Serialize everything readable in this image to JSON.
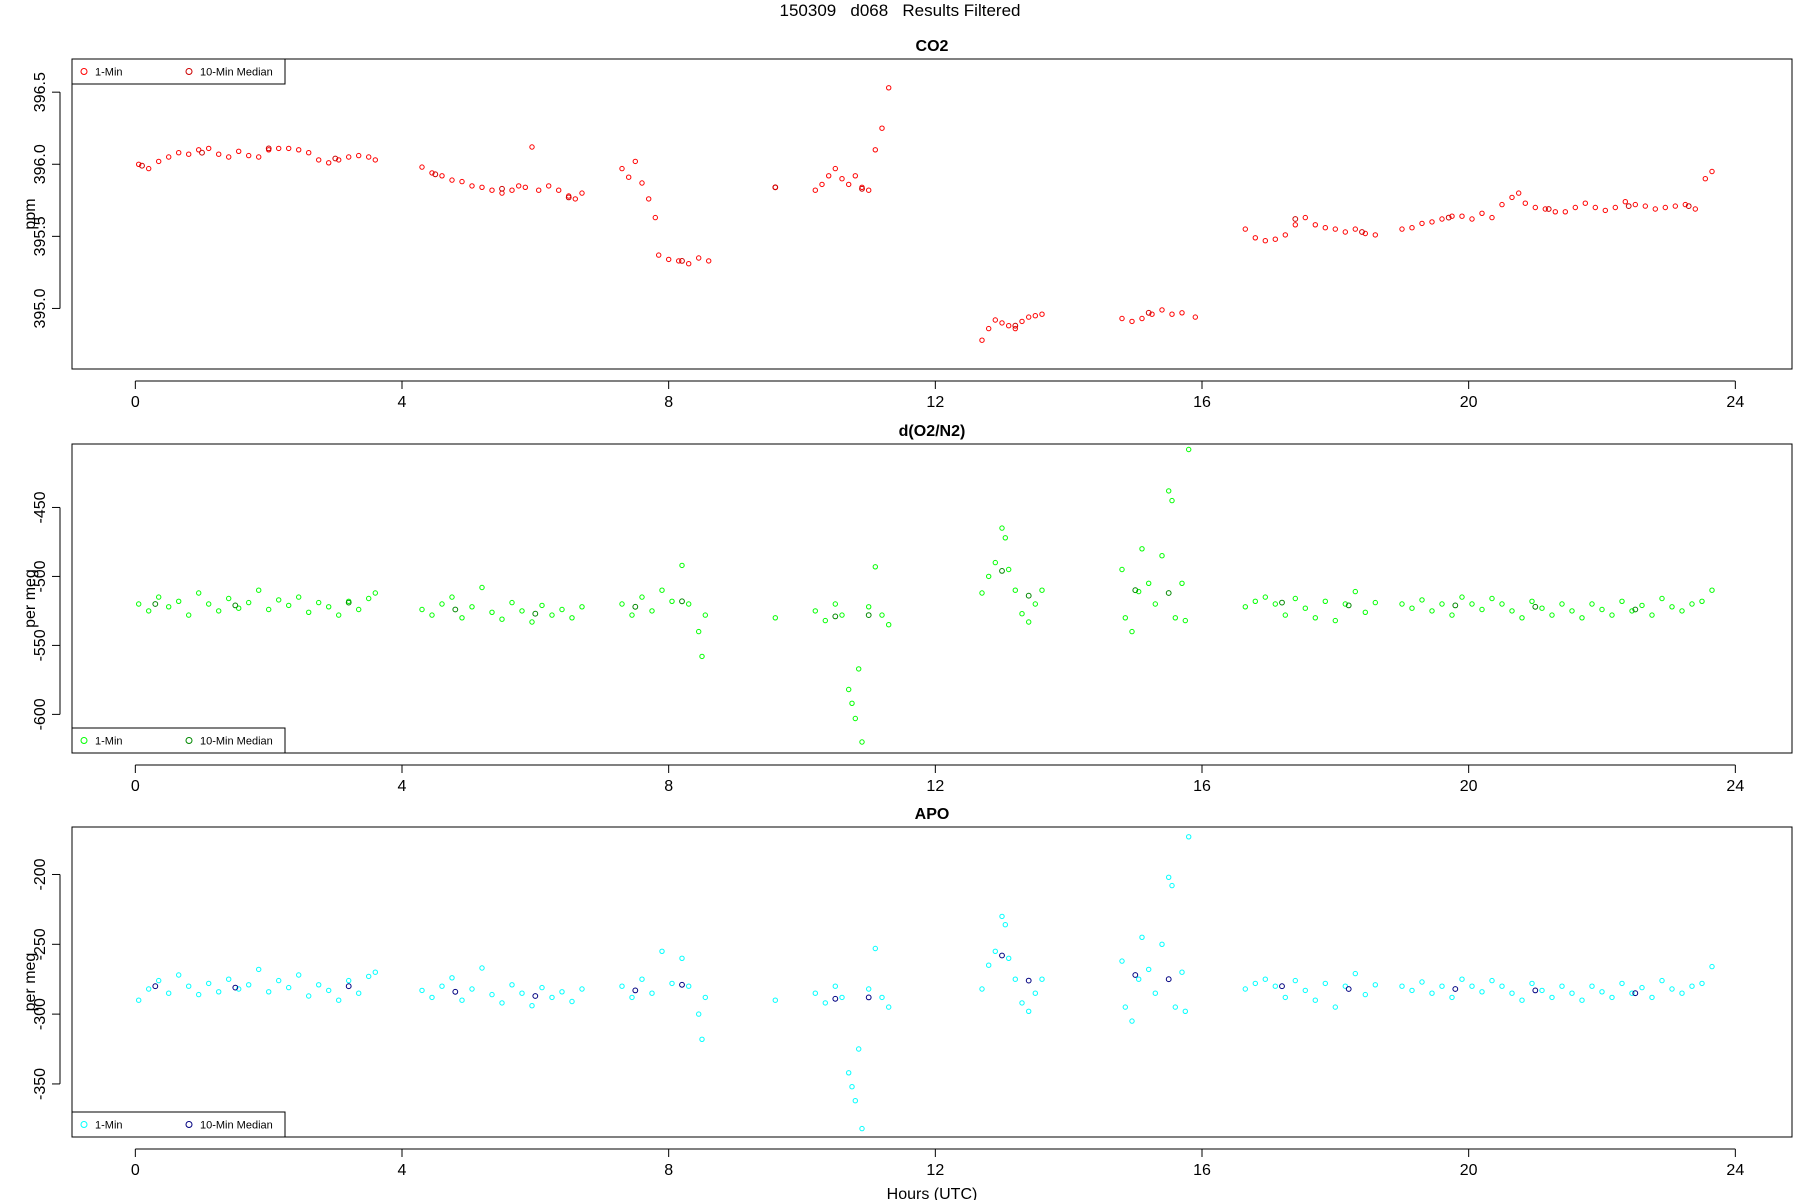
{
  "page_title": "150309   d068   Results Filtered",
  "chart_data": [
    {
      "type": "scatter",
      "title": "CO2",
      "xlabel": "",
      "ylabel": "ppm",
      "xlim": [
        -0.95,
        24.85
      ],
      "ylim": [
        394.58,
        396.73
      ],
      "xticks": [
        "0",
        "4",
        "8",
        "12",
        "16",
        "20",
        "24"
      ],
      "yticks": [
        "395.0",
        "395.5",
        "396.0",
        "396.5"
      ],
      "legend": {
        "placement": "top-left",
        "entries": [
          "1-Min",
          "10-Min Median"
        ],
        "colors": [
          "#ff0000",
          "#cc0000"
        ]
      },
      "series": [
        {
          "name": "1-Min",
          "color": "#ff0000",
          "x": [
            0.05,
            0.2,
            0.35,
            0.5,
            0.65,
            0.8,
            0.95,
            1.1,
            1.25,
            1.4,
            1.55,
            1.7,
            1.85,
            2.0,
            2.15,
            2.3,
            2.45,
            2.6,
            2.75,
            2.9,
            3.05,
            3.2,
            3.35,
            3.5,
            3.6,
            4.3,
            4.45,
            4.6,
            4.75,
            4.9,
            5.05,
            5.2,
            5.35,
            5.5,
            5.65,
            5.75,
            5.85,
            5.95,
            6.05,
            6.2,
            6.35,
            6.5,
            6.6,
            6.7,
            7.3,
            7.4,
            7.5,
            7.6,
            7.7,
            7.8,
            7.85,
            8.0,
            8.15,
            8.3,
            8.45,
            8.6,
            9.6,
            10.2,
            10.3,
            10.4,
            10.5,
            10.6,
            10.7,
            10.8,
            10.9,
            11.0,
            11.1,
            11.2,
            11.3,
            12.7,
            12.8,
            12.9,
            13.0,
            13.1,
            13.2,
            13.3,
            13.4,
            13.5,
            13.6,
            14.8,
            14.95,
            15.1,
            15.25,
            15.4,
            15.55,
            15.7,
            15.9,
            16.65,
            16.8,
            16.95,
            17.1,
            17.25,
            17.4,
            17.55,
            17.7,
            17.85,
            18.0,
            18.15,
            18.3,
            18.45,
            18.6,
            19.0,
            19.15,
            19.3,
            19.45,
            19.6,
            19.75,
            19.9,
            20.05,
            20.2,
            20.35,
            20.5,
            20.65,
            20.75,
            20.85,
            21.0,
            21.15,
            21.3,
            21.45,
            21.6,
            21.75,
            21.9,
            22.05,
            22.2,
            22.35,
            22.5,
            22.65,
            22.8,
            22.95,
            23.1,
            23.25,
            23.4,
            23.55,
            23.65
          ],
          "y": [
            396.0,
            395.97,
            396.02,
            396.05,
            396.08,
            396.07,
            396.1,
            396.11,
            396.07,
            396.05,
            396.09,
            396.06,
            396.05,
            396.1,
            396.11,
            396.11,
            396.1,
            396.08,
            396.03,
            396.01,
            396.03,
            396.05,
            396.06,
            396.05,
            396.03,
            395.98,
            395.94,
            395.92,
            395.89,
            395.88,
            395.85,
            395.84,
            395.82,
            395.8,
            395.82,
            395.85,
            395.84,
            396.12,
            395.82,
            395.85,
            395.82,
            395.78,
            395.76,
            395.8,
            395.97,
            395.91,
            396.02,
            395.87,
            395.76,
            395.63,
            395.37,
            395.34,
            395.33,
            395.31,
            395.35,
            395.33,
            395.84,
            395.82,
            395.86,
            395.92,
            395.97,
            395.9,
            395.86,
            395.92,
            395.84,
            395.82,
            396.1,
            396.25,
            396.53,
            394.78,
            394.86,
            394.92,
            394.9,
            394.88,
            394.86,
            394.91,
            394.94,
            394.95,
            394.96,
            394.93,
            394.91,
            394.93,
            394.96,
            394.99,
            394.96,
            394.97,
            394.94,
            395.55,
            395.49,
            395.47,
            395.48,
            395.51,
            395.58,
            395.63,
            395.58,
            395.56,
            395.55,
            395.53,
            395.55,
            395.52,
            395.51,
            395.55,
            395.56,
            395.59,
            395.6,
            395.62,
            395.64,
            395.64,
            395.62,
            395.66,
            395.63,
            395.72,
            395.77,
            395.8,
            395.73,
            395.7,
            395.69,
            395.67,
            395.67,
            395.7,
            395.73,
            395.7,
            395.68,
            395.7,
            395.74,
            395.72,
            395.71,
            395.69,
            395.7,
            395.71,
            395.72,
            395.69,
            395.9,
            395.95
          ]
        },
        {
          "name": "10-Min Median",
          "color": "#cc0000",
          "x": [
            0.1,
            1.0,
            2.0,
            3.0,
            4.5,
            5.5,
            6.5,
            8.2,
            9.6,
            10.9,
            13.2,
            15.2,
            17.4,
            18.4,
            19.7,
            21.2,
            22.4,
            23.3
          ],
          "y": [
            395.99,
            396.08,
            396.11,
            396.04,
            395.93,
            395.83,
            395.77,
            395.33,
            395.84,
            395.83,
            394.88,
            394.97,
            395.62,
            395.53,
            395.63,
            395.69,
            395.71,
            395.71
          ]
        }
      ]
    },
    {
      "type": "scatter",
      "title": "d(O2/N2)",
      "xlabel": "",
      "ylabel": "per meg",
      "xlim": [
        -0.95,
        24.85
      ],
      "ylim": [
        -628,
        -404
      ],
      "xticks": [
        "0",
        "4",
        "8",
        "12",
        "16",
        "20",
        "24"
      ],
      "yticks": [
        "-600",
        "-550",
        "-500",
        "-450"
      ],
      "legend": {
        "placement": "bottom-left",
        "entries": [
          "1-Min",
          "10-Min Median"
        ],
        "colors": [
          "#00ff00",
          "#008800"
        ]
      },
      "series": [
        {
          "name": "1-Min",
          "color": "#00ff00",
          "x": [
            0.05,
            0.2,
            0.35,
            0.5,
            0.65,
            0.8,
            0.95,
            1.1,
            1.25,
            1.4,
            1.55,
            1.7,
            1.85,
            2.0,
            2.15,
            2.3,
            2.45,
            2.6,
            2.75,
            2.9,
            3.05,
            3.2,
            3.35,
            3.5,
            3.6,
            4.3,
            4.45,
            4.6,
            4.75,
            4.9,
            5.05,
            5.2,
            5.35,
            5.5,
            5.65,
            5.8,
            5.95,
            6.1,
            6.25,
            6.4,
            6.55,
            6.7,
            7.3,
            7.45,
            7.6,
            7.75,
            7.9,
            8.05,
            8.2,
            8.3,
            8.45,
            8.5,
            8.55,
            9.6,
            10.2,
            10.35,
            10.5,
            10.6,
            10.7,
            10.75,
            10.8,
            10.85,
            10.9,
            11.0,
            11.1,
            11.2,
            11.3,
            12.7,
            12.8,
            12.9,
            13.0,
            13.05,
            13.1,
            13.2,
            13.3,
            13.4,
            13.5,
            13.6,
            14.8,
            14.85,
            14.95,
            15.05,
            15.1,
            15.2,
            15.3,
            15.4,
            15.5,
            15.55,
            15.6,
            15.7,
            15.75,
            15.8,
            16.65,
            16.8,
            16.95,
            17.1,
            17.25,
            17.4,
            17.55,
            17.7,
            17.85,
            18.0,
            18.15,
            18.3,
            18.45,
            18.6,
            19.0,
            19.15,
            19.3,
            19.45,
            19.6,
            19.75,
            19.9,
            20.05,
            20.2,
            20.35,
            20.5,
            20.65,
            20.8,
            20.95,
            21.1,
            21.25,
            21.4,
            21.55,
            21.7,
            21.85,
            22.0,
            22.15,
            22.3,
            22.45,
            22.6,
            22.75,
            22.9,
            23.05,
            23.2,
            23.35,
            23.5,
            23.65
          ],
          "y": [
            -520,
            -525,
            -515,
            -522,
            -518,
            -528,
            -512,
            -520,
            -525,
            -516,
            -523,
            -519,
            -510,
            -524,
            -517,
            -521,
            -515,
            -526,
            -519,
            -522,
            -528,
            -518,
            -524,
            -516,
            -512,
            -524,
            -528,
            -520,
            -515,
            -530,
            -522,
            -508,
            -526,
            -531,
            -519,
            -525,
            -533,
            -521,
            -528,
            -524,
            -530,
            -522,
            -520,
            -528,
            -515,
            -525,
            -510,
            -518,
            -492,
            -520,
            -540,
            -558,
            -528,
            -530,
            -525,
            -532,
            -520,
            -528,
            -582,
            -592,
            -603,
            -567,
            -620,
            -522,
            -493,
            -528,
            -535,
            -512,
            -500,
            -490,
            -465,
            -472,
            -495,
            -510,
            -527,
            -533,
            -520,
            -510,
            -495,
            -530,
            -540,
            -511,
            -480,
            -505,
            -520,
            -485,
            -438,
            -445,
            -530,
            -505,
            -532,
            -408,
            -522,
            -518,
            -515,
            -520,
            -528,
            -516,
            -523,
            -530,
            -518,
            -532,
            -520,
            -511,
            -526,
            -519,
            -520,
            -523,
            -517,
            -525,
            -520,
            -528,
            -515,
            -520,
            -524,
            -516,
            -520,
            -525,
            -530,
            -518,
            -523,
            -528,
            -520,
            -525,
            -530,
            -520,
            -524,
            -528,
            -518,
            -525,
            -521,
            -528,
            -516,
            -522,
            -525,
            -520,
            -518,
            -510
          ]
        },
        {
          "name": "10-Min Median",
          "color": "#008800",
          "x": [
            0.3,
            1.5,
            3.2,
            4.8,
            6.0,
            7.5,
            8.2,
            10.5,
            11.0,
            13.0,
            13.4,
            15.0,
            15.5,
            17.2,
            18.2,
            19.8,
            21.0,
            22.5
          ],
          "y": [
            -520,
            -521,
            -519,
            -524,
            -527,
            -522,
            -518,
            -529,
            -528,
            -496,
            -514,
            -510,
            -512,
            -519,
            -521,
            -521,
            -522,
            -524
          ]
        }
      ]
    },
    {
      "type": "scatter",
      "title": "APO",
      "xlabel": "Hours (UTC)",
      "ylabel": "per meg",
      "xlim": [
        -0.95,
        24.85
      ],
      "ylim": [
        -388,
        -166
      ],
      "xticks": [
        "0",
        "4",
        "8",
        "12",
        "16",
        "20",
        "24"
      ],
      "yticks": [
        "-350",
        "-300",
        "-250",
        "-200"
      ],
      "legend": {
        "placement": "bottom-left",
        "entries": [
          "1-Min",
          "10-Min Median"
        ],
        "colors": [
          "#00ffff",
          "#000080"
        ]
      },
      "series": [
        {
          "name": "1-Min",
          "color": "#00ffff",
          "x": [
            0.05,
            0.2,
            0.35,
            0.5,
            0.65,
            0.8,
            0.95,
            1.1,
            1.25,
            1.4,
            1.55,
            1.7,
            1.85,
            2.0,
            2.15,
            2.3,
            2.45,
            2.6,
            2.75,
            2.9,
            3.05,
            3.2,
            3.35,
            3.5,
            3.6,
            4.3,
            4.45,
            4.6,
            4.75,
            4.9,
            5.05,
            5.2,
            5.35,
            5.5,
            5.65,
            5.8,
            5.95,
            6.1,
            6.25,
            6.4,
            6.55,
            6.7,
            7.3,
            7.45,
            7.6,
            7.75,
            7.9,
            8.05,
            8.2,
            8.3,
            8.45,
            8.5,
            8.55,
            9.6,
            10.2,
            10.35,
            10.5,
            10.6,
            10.7,
            10.75,
            10.8,
            10.85,
            10.9,
            11.0,
            11.1,
            11.2,
            11.3,
            12.7,
            12.8,
            12.9,
            13.0,
            13.05,
            13.1,
            13.2,
            13.3,
            13.4,
            13.5,
            13.6,
            14.8,
            14.85,
            14.95,
            15.05,
            15.1,
            15.2,
            15.3,
            15.4,
            15.5,
            15.55,
            15.6,
            15.7,
            15.75,
            15.8,
            16.65,
            16.8,
            16.95,
            17.1,
            17.25,
            17.4,
            17.55,
            17.7,
            17.85,
            18.0,
            18.15,
            18.3,
            18.45,
            18.6,
            19.0,
            19.15,
            19.3,
            19.45,
            19.6,
            19.75,
            19.9,
            20.05,
            20.2,
            20.35,
            20.5,
            20.65,
            20.8,
            20.95,
            21.1,
            21.25,
            21.4,
            21.55,
            21.7,
            21.85,
            22.0,
            22.15,
            22.3,
            22.45,
            22.6,
            22.75,
            22.9,
            23.05,
            23.2,
            23.35,
            23.5,
            23.65
          ],
          "y": [
            -290,
            -282,
            -276,
            -285,
            -272,
            -280,
            -286,
            -278,
            -284,
            -275,
            -282,
            -279,
            -268,
            -284,
            -276,
            -281,
            -272,
            -287,
            -279,
            -283,
            -290,
            -276,
            -285,
            -273,
            -270,
            -283,
            -288,
            -280,
            -274,
            -290,
            -282,
            -267,
            -286,
            -292,
            -279,
            -285,
            -294,
            -281,
            -288,
            -284,
            -291,
            -282,
            -280,
            -288,
            -275,
            -285,
            -255,
            -278,
            -260,
            -280,
            -300,
            -318,
            -288,
            -290,
            -285,
            -292,
            -280,
            -288,
            -342,
            -352,
            -362,
            -325,
            -382,
            -282,
            -253,
            -288,
            -295,
            -282,
            -265,
            -255,
            -230,
            -236,
            -260,
            -275,
            -292,
            -298,
            -285,
            -275,
            -262,
            -295,
            -305,
            -275,
            -245,
            -268,
            -285,
            -250,
            -202,
            -208,
            -295,
            -270,
            -298,
            -173,
            -282,
            -278,
            -275,
            -280,
            -288,
            -276,
            -283,
            -290,
            -278,
            -295,
            -280,
            -271,
            -286,
            -279,
            -280,
            -283,
            -277,
            -285,
            -280,
            -288,
            -275,
            -280,
            -284,
            -276,
            -280,
            -285,
            -290,
            -278,
            -283,
            -288,
            -280,
            -285,
            -290,
            -280,
            -284,
            -288,
            -278,
            -285,
            -281,
            -288,
            -276,
            -282,
            -285,
            -280,
            -278,
            -266
          ]
        },
        {
          "name": "10-Min Median",
          "color": "#000080",
          "x": [
            0.3,
            1.5,
            3.2,
            4.8,
            6.0,
            7.5,
            8.2,
            10.5,
            11.0,
            13.0,
            13.4,
            15.0,
            15.5,
            17.2,
            18.2,
            19.8,
            21.0,
            22.5
          ],
          "y": [
            -280,
            -281,
            -280,
            -284,
            -287,
            -283,
            -279,
            -289,
            -288,
            -258,
            -276,
            -272,
            -275,
            -280,
            -282,
            -282,
            -283,
            -285
          ]
        }
      ]
    }
  ]
}
